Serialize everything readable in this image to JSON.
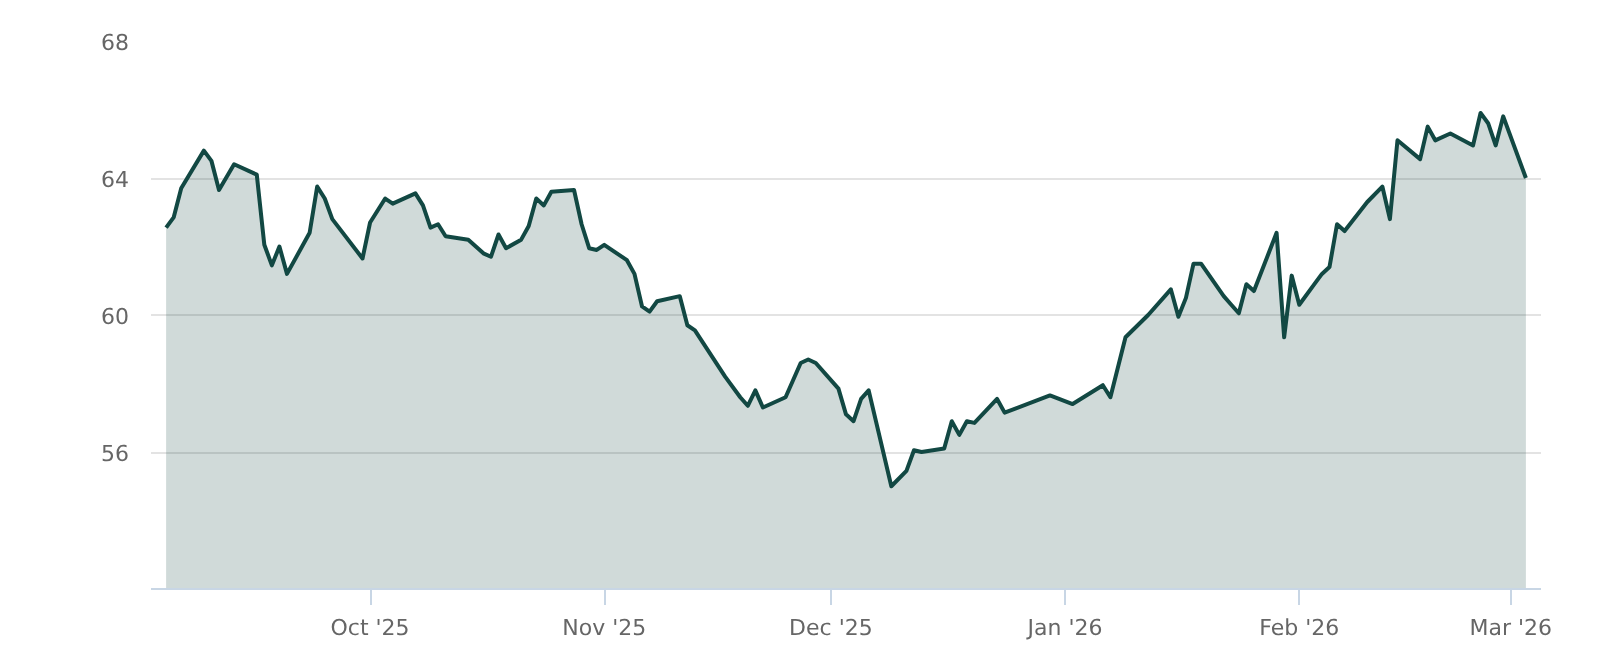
{
  "chart_data": {
    "type": "area",
    "x": [
      "2025-09-04",
      "2025-09-05",
      "2025-09-06",
      "2025-09-09",
      "2025-09-10",
      "2025-09-11",
      "2025-09-13",
      "2025-09-16",
      "2025-09-17",
      "2025-09-18",
      "2025-09-19",
      "2025-09-20",
      "2025-09-23",
      "2025-09-24",
      "2025-09-25",
      "2025-09-26",
      "2025-09-30",
      "2025-10-01",
      "2025-10-03",
      "2025-10-04",
      "2025-10-07",
      "2025-10-08",
      "2025-10-09",
      "2025-10-10",
      "2025-10-11",
      "2025-10-14",
      "2025-10-16",
      "2025-10-17",
      "2025-10-18",
      "2025-10-19",
      "2025-10-21",
      "2025-10-22",
      "2025-10-23",
      "2025-10-24",
      "2025-10-25",
      "2025-10-28",
      "2025-10-29",
      "2025-10-30",
      "2025-10-31",
      "2025-11-01",
      "2025-11-04",
      "2025-11-05",
      "2025-11-06",
      "2025-11-07",
      "2025-11-08",
      "2025-11-11",
      "2025-11-12",
      "2025-11-13",
      "2025-11-17",
      "2025-11-19",
      "2025-11-20",
      "2025-11-21",
      "2025-11-22",
      "2025-11-25",
      "2025-11-27",
      "2025-11-28",
      "2025-11-29",
      "2025-12-02",
      "2025-12-03",
      "2025-12-04",
      "2025-12-05",
      "2025-12-06",
      "2025-12-09",
      "2025-12-11",
      "2025-12-12",
      "2025-12-13",
      "2025-12-16",
      "2025-12-17",
      "2025-12-18",
      "2025-12-19",
      "2025-12-20",
      "2025-12-23",
      "2025-12-24",
      "2025-12-30",
      "2026-01-02",
      "2026-01-06",
      "2026-01-07",
      "2026-01-09",
      "2026-01-12",
      "2026-01-15",
      "2026-01-16",
      "2026-01-17",
      "2026-01-18",
      "2026-01-19",
      "2026-01-22",
      "2026-01-23",
      "2026-01-24",
      "2026-01-25",
      "2026-01-26",
      "2026-01-29",
      "2026-01-30",
      "2026-01-31",
      "2026-02-01",
      "2026-02-03",
      "2026-02-04",
      "2026-02-05",
      "2026-02-06",
      "2026-02-07",
      "2026-02-10",
      "2026-02-12",
      "2026-02-13",
      "2026-02-14",
      "2026-02-17",
      "2026-02-18",
      "2026-02-19",
      "2026-02-21",
      "2026-02-24",
      "2026-02-25",
      "2026-02-26",
      "2026-02-27",
      "2026-02-28",
      "2026-03-03"
    ],
    "series": [
      {
        "color": "#124843",
        "values": [
          62.55,
          62.85,
          63.7,
          64.8,
          64.5,
          63.65,
          64.4,
          64.1,
          62.05,
          61.45,
          62.0,
          61.2,
          62.4,
          63.75,
          63.4,
          62.8,
          61.65,
          62.7,
          63.4,
          63.25,
          63.55,
          63.2,
          62.55,
          62.65,
          62.3,
          62.2,
          61.8,
          61.7,
          62.35,
          61.95,
          62.2,
          62.6,
          63.4,
          63.2,
          63.6,
          63.65,
          62.65,
          61.95,
          61.9,
          62.05,
          61.6,
          61.2,
          60.25,
          60.1,
          60.4,
          60.55,
          59.7,
          59.55,
          58.2,
          57.6,
          57.35,
          57.8,
          57.3,
          57.6,
          58.6,
          58.7,
          58.6,
          57.85,
          57.1,
          56.9,
          57.55,
          57.8,
          55.0,
          55.45,
          56.05,
          56.0,
          56.1,
          56.9,
          56.5,
          56.9,
          56.85,
          57.55,
          57.15,
          57.65,
          57.4,
          57.95,
          57.6,
          59.35,
          60.0,
          60.75,
          59.95,
          60.5,
          61.5,
          61.5,
          60.55,
          60.3,
          60.05,
          60.9,
          60.7,
          62.4,
          59.35,
          61.15,
          60.3,
          60.9,
          61.2,
          61.4,
          62.65,
          62.45,
          63.3,
          63.75,
          62.8,
          65.1,
          64.55,
          65.5,
          65.1,
          65.3,
          64.95,
          65.9,
          65.6,
          64.95,
          65.8,
          64.0
        ]
      }
    ],
    "xlim": [
      "2025-09-02",
      "2026-03-05"
    ],
    "xticks": [
      {
        "value": "2025-10-01",
        "label": "Oct '25"
      },
      {
        "value": "2025-11-01",
        "label": "Nov '25"
      },
      {
        "value": "2025-12-01",
        "label": "Dec '25"
      },
      {
        "value": "2026-01-01",
        "label": "Jan '26"
      },
      {
        "value": "2026-02-01",
        "label": "Feb '26"
      },
      {
        "value": "2026-03-01",
        "label": "Mar '26"
      }
    ],
    "ylim": [
      52,
      68
    ],
    "yticks": [
      56,
      60,
      64,
      68
    ],
    "grid": "y"
  }
}
